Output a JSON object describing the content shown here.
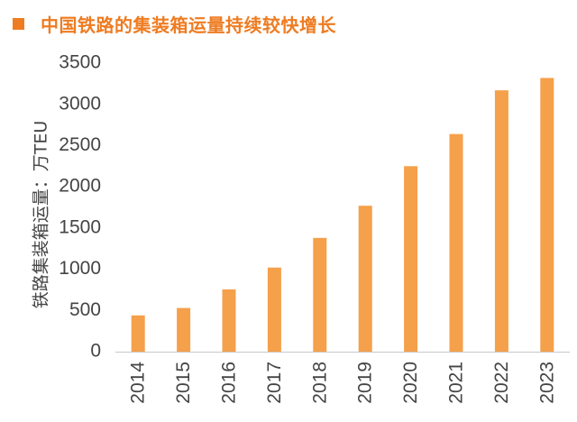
{
  "header": {
    "title": "中国铁路的集装箱运量持续较快增长"
  },
  "chart_data": {
    "type": "bar",
    "title": "中国铁路的集装箱运量持续较快增长",
    "xlabel": "",
    "ylabel": "铁路集装箱运量：万TEU",
    "categories": [
      "2014",
      "2015",
      "2016",
      "2017",
      "2018",
      "2019",
      "2020",
      "2021",
      "2022",
      "2023"
    ],
    "values": [
      440,
      530,
      755,
      1020,
      1380,
      1770,
      2250,
      2640,
      3170,
      3320
    ],
    "ylim": [
      0,
      3500
    ],
    "yticks": [
      "0",
      "500",
      "1000",
      "1500",
      "2000",
      "2500",
      "3000",
      "3500"
    ],
    "grid": false,
    "legend": "none",
    "bar_color": "#f5a04a",
    "accent_color": "#ee7c22"
  }
}
